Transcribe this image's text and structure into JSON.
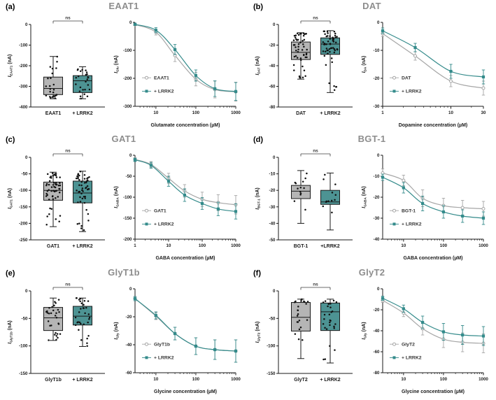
{
  "colors": {
    "background": "#ffffff",
    "title_gray": "#8d8d8d",
    "axis": "#1a1a1a",
    "gray_series": "#a6a6a6",
    "gray_fill": "#b5b5b5",
    "teal_series": "#348b8b",
    "teal_fill": "#4d9393",
    "point_black": "#111111",
    "sig_color": "#3c3c3c"
  },
  "chart_data": [
    {
      "label": "(a)",
      "title": "EAAT1",
      "significance": "ns",
      "boxplot": {
        "type": "box",
        "ylabel": {
          "prefix": "I",
          "sub": "EAAT1",
          "unit": "(nA)"
        },
        "ylim": [
          -400,
          0
        ],
        "yticks": [
          0,
          -100,
          -200,
          -300,
          -400
        ],
        "groups": [
          {
            "name": "EAAT1",
            "fill": "gray",
            "whisker_high": -155,
            "q3": -255,
            "median": -310,
            "q1": -340,
            "whisker_low": -360,
            "n_points": 25
          },
          {
            "name": "+ LRRK2",
            "fill": "teal",
            "whisker_high": -205,
            "q3": -248,
            "median": -273,
            "q1": -330,
            "whisker_low": -360,
            "n_points": 25
          }
        ]
      },
      "dose_response": {
        "type": "line",
        "xlabel": "Glutamate concentration (µM)",
        "ylabel": {
          "prefix": "I",
          "sub": "Glu",
          "unit": "(nA)"
        },
        "xlim": [
          3,
          1000
        ],
        "xticks": [
          10,
          100,
          1000
        ],
        "ylim": [
          -300,
          0
        ],
        "yticks": [
          0,
          -100,
          -200,
          -300
        ],
        "legend_position": "lower-left",
        "series": [
          {
            "name": "EAAT1",
            "marker": "circle",
            "color": "gray",
            "x": [
              3,
              10,
              30,
              100,
              300,
              1000
            ],
            "y": [
              -8,
              -35,
              -118,
              -203,
              -240,
              -248
            ],
            "err": [
              4,
              10,
              22,
              24,
              30,
              34
            ]
          },
          {
            "name": "+ LRRK2",
            "marker": "square",
            "color": "teal",
            "x": [
              3,
              10,
              30,
              100,
              300,
              1000
            ],
            "y": [
              -7,
              -28,
              -97,
              -190,
              -237,
              -247
            ],
            "err": [
              4,
              9,
              18,
              20,
              28,
              32
            ]
          }
        ]
      }
    },
    {
      "label": "(b)",
      "title": "DAT",
      "significance": "ns",
      "boxplot": {
        "type": "box",
        "ylabel": {
          "prefix": "I",
          "sub": "DAT",
          "unit": "(nA)"
        },
        "ylim": [
          -80,
          0
        ],
        "yticks": [
          0,
          -20,
          -40,
          -60,
          -80
        ],
        "groups": [
          {
            "name": "DAT",
            "fill": "gray",
            "whisker_high": -8,
            "q3": -17,
            "median": -27,
            "q1": -34,
            "whisker_low": -53,
            "n_points": 50
          },
          {
            "name": "+ LRRK2",
            "fill": "teal",
            "whisker_high": -6,
            "q3": -13,
            "median": -19,
            "q1": -29,
            "whisker_low": -66,
            "n_points": 55
          }
        ]
      },
      "dose_response": {
        "type": "line",
        "xlabel": "Dopamine concentration (µM)",
        "ylabel": {
          "prefix": "I",
          "sub": "DA",
          "unit": "(nA)"
        },
        "xlim": [
          1,
          30
        ],
        "xticks": [
          1,
          10,
          30
        ],
        "ylim": [
          -30,
          0
        ],
        "yticks": [
          0,
          -10,
          -20,
          -30
        ],
        "legend_position": "lower-left",
        "series": [
          {
            "name": "DAT",
            "marker": "circle",
            "color": "gray",
            "x": [
              1,
              3,
              10,
              30
            ],
            "y": [
              -4,
              -12,
              -21,
              -23.5
            ],
            "err": [
              1,
              1.5,
              2,
              2.5
            ]
          },
          {
            "name": "+ LRRK2",
            "marker": "square",
            "color": "teal",
            "x": [
              1,
              3,
              10,
              30
            ],
            "y": [
              -3,
              -9,
              -17.5,
              -19.5
            ],
            "err": [
              1,
              1.5,
              2.5,
              2.5
            ]
          }
        ]
      }
    },
    {
      "label": "(c)",
      "title": "GAT1",
      "significance": "ns",
      "boxplot": {
        "type": "box",
        "ylabel": {
          "prefix": "I",
          "sub": "GAT1",
          "unit": "(nA)"
        },
        "ylim": [
          -250,
          0
        ],
        "yticks": [
          0,
          -50,
          -100,
          -150,
          -200,
          -250
        ],
        "groups": [
          {
            "name": "GAT1",
            "fill": "gray",
            "whisker_high": -45,
            "q3": -75,
            "median": -100,
            "q1": -130,
            "whisker_low": -210,
            "n_points": 55
          },
          {
            "name": "+ LRRK2",
            "fill": "teal",
            "whisker_high": -42,
            "q3": -72,
            "median": -108,
            "q1": -138,
            "whisker_low": -225,
            "n_points": 50
          }
        ]
      },
      "dose_response": {
        "type": "line",
        "xlabel": "GABA concentration (µM)",
        "ylabel": {
          "prefix": "I",
          "sub": "GABA",
          "unit": "(nA)"
        },
        "xlim": [
          1,
          1000
        ],
        "xticks": [
          1,
          10,
          100,
          1000
        ],
        "ylim": [
          -200,
          0
        ],
        "yticks": [
          0,
          -50,
          -100,
          -150,
          -200
        ],
        "legend_position": "lower-left",
        "series": [
          {
            "name": "GAT1",
            "marker": "circle",
            "color": "gray",
            "x": [
              1,
              3,
              10,
              30,
              100,
              300,
              1000
            ],
            "y": [
              -10,
              -22,
              -55,
              -85,
              -105,
              -113,
              -118
            ],
            "err": [
              4,
              7,
              12,
              15,
              17,
              19,
              22
            ]
          },
          {
            "name": "+ LRRK2",
            "marker": "square",
            "color": "teal",
            "x": [
              1,
              3,
              10,
              30,
              100,
              300,
              1000
            ],
            "y": [
              -11,
              -24,
              -62,
              -95,
              -115,
              -128,
              -134
            ],
            "err": [
              4,
              7,
              12,
              15,
              14,
              16,
              18
            ]
          }
        ]
      }
    },
    {
      "label": "(d)",
      "title": "BGT-1",
      "significance": "ns",
      "boxplot": {
        "type": "box",
        "ylabel": {
          "prefix": "I",
          "sub": "BGT-1",
          "unit": "(nA)"
        },
        "ylim": [
          -50,
          0
        ],
        "yticks": [
          0,
          -10,
          -20,
          -30,
          -40,
          -50
        ],
        "groups": [
          {
            "name": "BGT-1",
            "fill": "gray",
            "whisker_high": -8,
            "q3": -17,
            "median": -20.5,
            "q1": -25,
            "whisker_low": -40,
            "n_points": 13
          },
          {
            "name": "+LRRK2",
            "fill": "teal",
            "whisker_high": -9.5,
            "q3": -20,
            "median": -27,
            "q1": -28.5,
            "whisker_low": -44,
            "n_points": 12
          }
        ]
      },
      "dose_response": {
        "type": "line",
        "xlabel": "GABA concentration (µM)",
        "ylabel": {
          "prefix": "I",
          "sub": "GABA",
          "unit": "(nA)"
        },
        "xlim": [
          3,
          1000
        ],
        "xticks": [
          10,
          100,
          1000
        ],
        "ylim": [
          -40,
          0
        ],
        "yticks": [
          0,
          -10,
          -20,
          -30,
          -40
        ],
        "legend_position": "lower-left",
        "series": [
          {
            "name": "BGT-1",
            "marker": "circle",
            "color": "gray",
            "x": [
              3,
              10,
              30,
              100,
              300,
              1000
            ],
            "y": [
              -8.5,
              -12,
              -20.5,
              -24,
              -25,
              -25.5
            ],
            "err": [
              2,
              2.5,
              4,
              3.5,
              3.5,
              3.5
            ]
          },
          {
            "name": "+ LRRK2",
            "marker": "square",
            "color": "teal",
            "x": [
              3,
              10,
              30,
              100,
              300,
              1000
            ],
            "y": [
              -10.5,
              -15.5,
              -23,
              -27,
              -29,
              -30
            ],
            "err": [
              1.5,
              2.5,
              3.5,
              3,
              3,
              3
            ]
          }
        ]
      }
    },
    {
      "label": "(e)",
      "title": "GlyT1b",
      "significance": "ns",
      "boxplot": {
        "type": "box",
        "ylabel": {
          "prefix": "I",
          "sub": "GlyT1b",
          "unit": "(nA)"
        },
        "ylim": [
          -150,
          0
        ],
        "yticks": [
          0,
          -50,
          -100,
          -150
        ],
        "groups": [
          {
            "name": "GlyT1b",
            "fill": "gray",
            "whisker_high": -13,
            "q3": -30,
            "median": -49,
            "q1": -72,
            "whisker_low": -90,
            "n_points": 30
          },
          {
            "name": "+ LRRK2",
            "fill": "teal",
            "whisker_high": -13,
            "q3": -28,
            "median": -46,
            "q1": -62,
            "whisker_low": -101,
            "n_points": 32
          }
        ]
      },
      "dose_response": {
        "type": "line",
        "xlabel": "Glycine concentration (µM)",
        "ylabel": {
          "prefix": "I",
          "sub": "Gly",
          "unit": "(nA)"
        },
        "xlim": [
          3,
          1000
        ],
        "xticks": [
          10,
          100,
          1000
        ],
        "ylim": [
          -60,
          0
        ],
        "yticks": [
          0,
          -20,
          -40,
          -60
        ],
        "legend_position": "lower-left",
        "series": [
          {
            "name": "GlyT1b",
            "marker": "circle",
            "color": "gray",
            "x": [
              3,
              10,
              30,
              100,
              300,
              1000
            ],
            "y": [
              -7,
              -19.5,
              -32,
              -41,
              -43.5,
              -44.5
            ],
            "err": [
              1.5,
              2.5,
              4.5,
              6,
              7,
              8
            ]
          },
          {
            "name": "+ LRRK2",
            "marker": "square",
            "color": "teal",
            "x": [
              3,
              10,
              30,
              100,
              300,
              1000
            ],
            "y": [
              -7,
              -19,
              -32,
              -41,
              -43.5,
              -44.5
            ],
            "err": [
              1.5,
              2.5,
              4.5,
              6,
              7,
              8
            ]
          }
        ]
      }
    },
    {
      "label": "(f)",
      "title": "GlyT2",
      "significance": "ns",
      "boxplot": {
        "type": "box",
        "ylabel": {
          "prefix": "I",
          "sub": "GlyT2",
          "unit": "(nA)"
        },
        "ylim": [
          -150,
          0
        ],
        "yticks": [
          0,
          -50,
          -100,
          -150
        ],
        "groups": [
          {
            "name": "GlyT2",
            "fill": "gray",
            "whisker_high": -15,
            "q3": -21,
            "median": -48,
            "q1": -73,
            "whisker_low": -123,
            "n_points": 22
          },
          {
            "name": "+ LRRK2",
            "fill": "teal",
            "whisker_high": -15,
            "q3": -22,
            "median": -38,
            "q1": -72,
            "whisker_low": -131,
            "n_points": 27
          }
        ]
      },
      "dose_response": {
        "type": "line",
        "xlabel": "Glycine concentration (µM)",
        "ylabel": {
          "prefix": "I",
          "sub": "Gly",
          "unit": "(nA)"
        },
        "xlim": [
          3,
          1000
        ],
        "xticks": [
          10,
          100,
          1000
        ],
        "ylim": [
          -80,
          0
        ],
        "yticks": [
          0,
          -20,
          -40,
          -60,
          -80
        ],
        "legend_position": "lower-left",
        "series": [
          {
            "name": "GlyT2",
            "marker": "circle",
            "color": "gray",
            "x": [
              3,
              10,
              30,
              100,
              300,
              1000
            ],
            "y": [
              -11,
              -23,
              -38,
              -48,
              -51,
              -52
            ],
            "err": [
              2,
              3.5,
              6,
              8,
              9,
              9
            ]
          },
          {
            "name": "+ LRRK2",
            "marker": "square",
            "color": "teal",
            "x": [
              3,
              10,
              30,
              100,
              300,
              1000
            ],
            "y": [
              -9,
              -19,
              -32,
              -41,
              -44,
              -45
            ],
            "err": [
              2,
              3.5,
              6,
              8,
              9,
              9
            ]
          }
        ]
      }
    }
  ]
}
